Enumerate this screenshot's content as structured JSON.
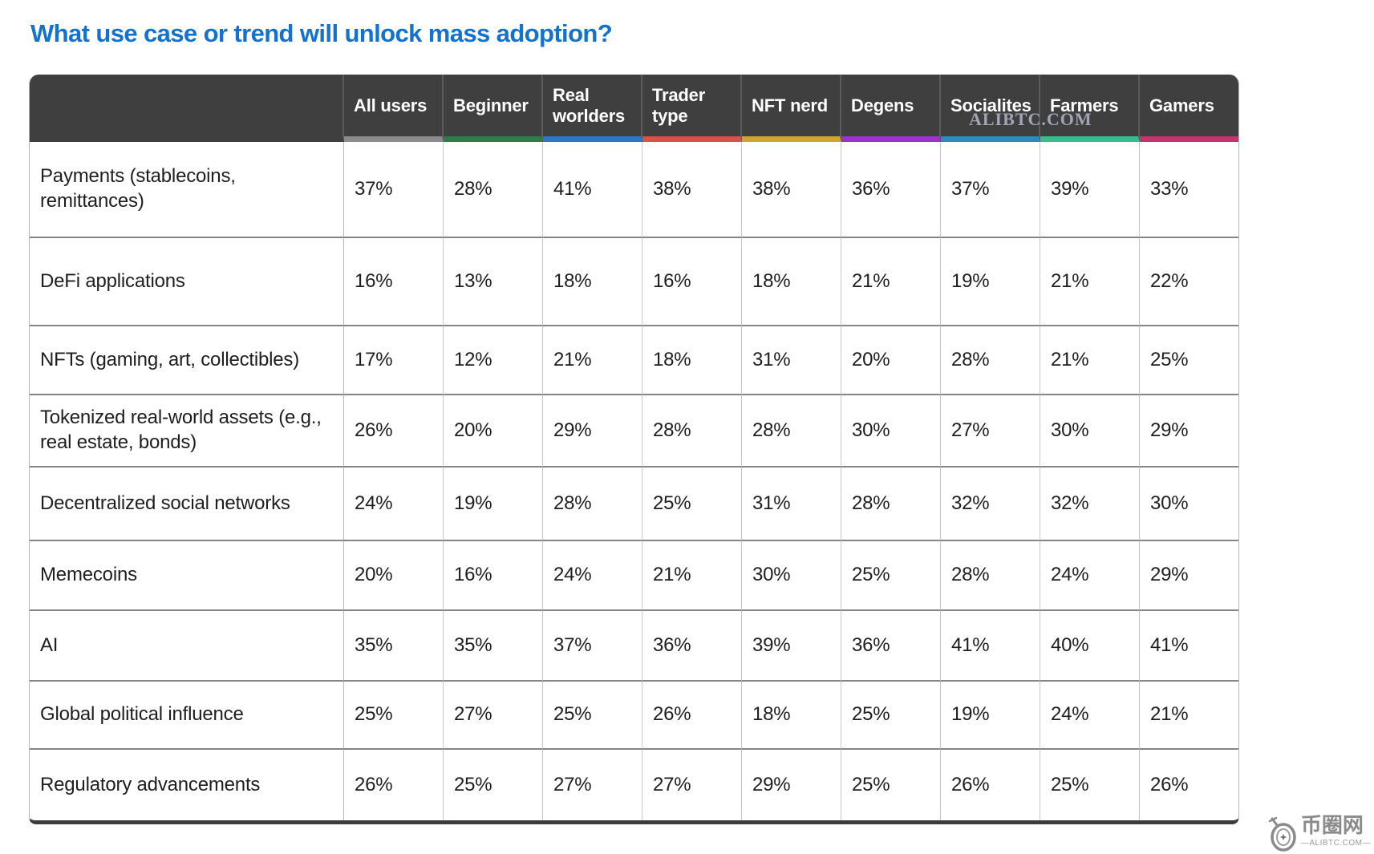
{
  "title": "What use case or trend will unlock mass adoption?",
  "chart_data": {
    "type": "table",
    "title": "What use case or trend will unlock mass adoption?",
    "unit": "%",
    "columns": [
      "All users",
      "Beginner",
      "Real worlders",
      "Trader type",
      "NFT nerd",
      "Degens",
      "Socialites",
      "Farmers",
      "Gamers"
    ],
    "column_accent_colors": [
      "#8b8b8b",
      "#2f7d4b",
      "#2d77cb",
      "#d95245",
      "#d2a42f",
      "#9c33cc",
      "#2b8cba",
      "#36bd8b",
      "#c43471"
    ],
    "rows": [
      {
        "label": "Payments (stablecoins, remittances)",
        "values": [
          37,
          28,
          41,
          38,
          38,
          36,
          37,
          39,
          33
        ]
      },
      {
        "label": "DeFi applications",
        "values": [
          16,
          13,
          18,
          16,
          18,
          21,
          19,
          21,
          22
        ]
      },
      {
        "label": "NFTs (gaming, art, collectibles)",
        "values": [
          17,
          12,
          21,
          18,
          31,
          20,
          28,
          21,
          25
        ]
      },
      {
        "label": "Tokenized real-world assets (e.g., real estate, bonds)",
        "values": [
          26,
          20,
          29,
          28,
          28,
          30,
          27,
          30,
          29
        ]
      },
      {
        "label": "Decentralized social networks",
        "values": [
          24,
          19,
          28,
          25,
          31,
          28,
          32,
          32,
          30
        ]
      },
      {
        "label": "Memecoins",
        "values": [
          20,
          16,
          24,
          21,
          30,
          25,
          28,
          24,
          29
        ]
      },
      {
        "label": "AI",
        "values": [
          35,
          35,
          37,
          36,
          39,
          36,
          41,
          40,
          41
        ]
      },
      {
        "label": "Global political influence",
        "values": [
          25,
          27,
          25,
          26,
          18,
          25,
          19,
          24,
          21
        ]
      },
      {
        "label": "Regulatory advancements",
        "values": [
          26,
          25,
          27,
          27,
          29,
          25,
          26,
          25,
          26
        ]
      }
    ]
  },
  "style": {
    "title_color": "#1272d2",
    "header_bg": "#3f3f3f"
  },
  "watermarks": {
    "header_overlay": "ALIBTC.COM",
    "footer_site_name": "币圈网",
    "footer_domain": "—ALIBTC.COM—"
  }
}
